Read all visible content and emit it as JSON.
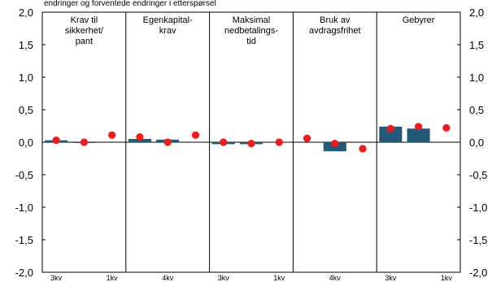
{
  "chart_data": {
    "type": "bar",
    "top_text": "endringer og forventede endringer i etterspørsel",
    "ylim": [
      -2.0,
      2.0
    ],
    "yticks": [
      "2,0",
      "1,5",
      "1,0",
      "0,5",
      "0,0",
      "-0,5",
      "-1,0",
      "-1,5",
      "-2,0"
    ],
    "yticks_right": [
      "2,0",
      "1,5",
      "1,0",
      "0,5",
      "0,0",
      "-0,5",
      "-1,0",
      "-1,5",
      "-2,0"
    ],
    "grid": false,
    "bar_color": "#235a78",
    "dot_color": "#ee1c1c",
    "panels": [
      {
        "title": [
          "Krav til",
          "sikkerhet/",
          "pant"
        ],
        "x_labels": [
          "3kv",
          "",
          "1kv"
        ],
        "bars": [
          0.03,
          0.0,
          null
        ],
        "dots": [
          0.03,
          0.0,
          0.11
        ]
      },
      {
        "title": [
          "Egenkapital-",
          "krav"
        ],
        "x_labels": [
          "",
          "4kv",
          ""
        ],
        "bars": [
          0.05,
          0.04,
          null
        ],
        "dots": [
          0.08,
          0.0,
          0.11
        ]
      },
      {
        "title": [
          "Maksimal",
          "nedbetalings-",
          "tid"
        ],
        "x_labels": [
          "3kv",
          "",
          "1kv"
        ],
        "bars": [
          -0.03,
          -0.03,
          null
        ],
        "dots": [
          0.0,
          -0.02,
          0.0
        ]
      },
      {
        "title": [
          "Bruk av",
          "avdragsfrihet"
        ],
        "x_labels": [
          "",
          "4kv",
          ""
        ],
        "bars": [
          null,
          -0.14,
          null
        ],
        "dots": [
          0.06,
          -0.02,
          -0.1
        ]
      },
      {
        "title": [
          "Gebyrer"
        ],
        "x_labels": [
          "3kv",
          "",
          "1kv"
        ],
        "bars": [
          0.24,
          0.21,
          null
        ],
        "dots": [
          0.21,
          0.24,
          0.22
        ]
      }
    ]
  }
}
